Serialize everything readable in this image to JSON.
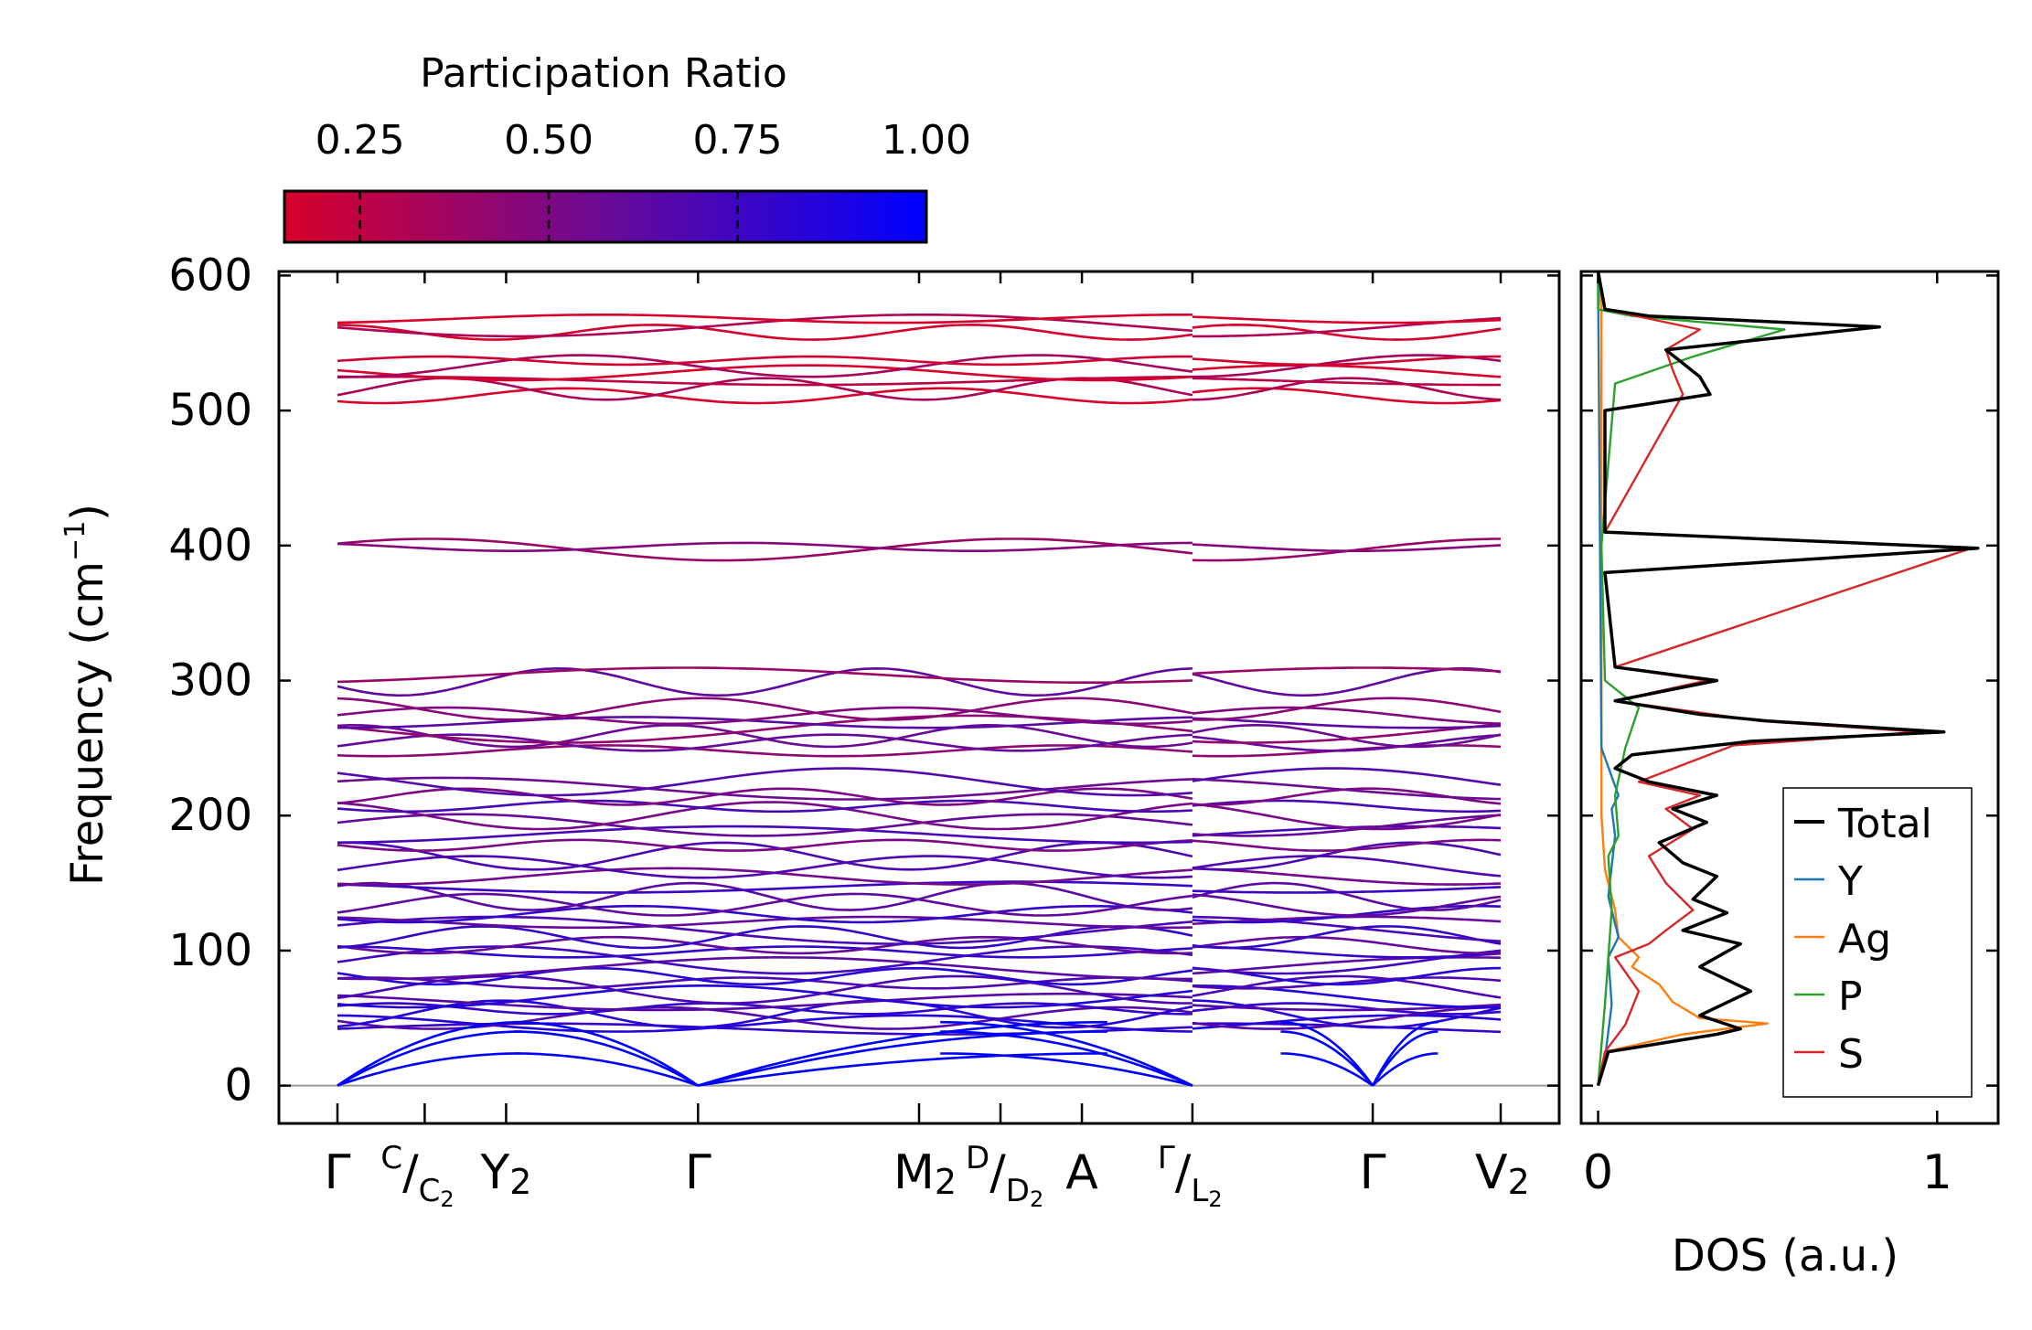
{
  "chart_data": [
    {
      "type": "line",
      "title": "",
      "xlabel": "",
      "ylabel": "Frequency (cm⁻¹)",
      "ylabel_main": "Frequency (cm",
      "ylabel_sup": "−1",
      "ylabel_close": ")",
      "ylim": [
        -28,
        603
      ],
      "yticks": [
        "0",
        "100",
        "200",
        "300",
        "400",
        "500",
        "600"
      ],
      "ytick_values": [
        0,
        100,
        200,
        300,
        400,
        500,
        600
      ],
      "path_x_range": [
        0,
        10
      ],
      "high_symmetry_points": [
        {
          "x": 0.0,
          "label": "Γ",
          "tick": true
        },
        {
          "x": 0.75,
          "label": "",
          "tick": true
        },
        {
          "x": 1.45,
          "label": "",
          "tick": true
        },
        {
          "x": 3.1,
          "label": "Γ",
          "tick": true
        },
        {
          "x": 5.0,
          "label": "",
          "tick": true
        },
        {
          "x": 5.7,
          "label": "",
          "tick": true
        },
        {
          "x": 6.4,
          "label": "A",
          "tick": true
        },
        {
          "x": 7.35,
          "label": "",
          "tick": true
        },
        {
          "x": 8.9,
          "label": "Γ",
          "tick": true
        },
        {
          "x": 10.0,
          "label": "",
          "tick": true
        }
      ],
      "composite_labels": {
        "c_c2": {
          "sup": "C",
          "slash": "/",
          "sub_main": "C",
          "sub_sub": "2"
        },
        "y2": {
          "main": "Y",
          "sub": "2"
        },
        "m2": {
          "main": "M",
          "sub": "2"
        },
        "d_d2": {
          "sup": "D",
          "slash": "/",
          "sub_main": "D",
          "sub_sub": "2"
        },
        "gamma_l2": {
          "sup": "Γ",
          "slash": "/",
          "sub_main": "L",
          "sub_sub": "2"
        },
        "v2": {
          "main": "V",
          "sub": "2"
        }
      },
      "discontinuity_x": 7.35,
      "acoustic_zero_x": [
        0,
        3.1,
        7.35,
        8.9
      ],
      "optical_bands_cm1": [
        42,
        46,
        50,
        53,
        57,
        62,
        66,
        71,
        76,
        81,
        87,
        93,
        99,
        104,
        110,
        115,
        121,
        127,
        134,
        140,
        147,
        155,
        162,
        170,
        178,
        186,
        193,
        200,
        207,
        214,
        220,
        225,
        248,
        254,
        259,
        264,
        269,
        274,
        279,
        299,
        304,
        397,
        399,
        511,
        516,
        522,
        528,
        533,
        537,
        558,
        563,
        568
      ],
      "band_participation_ratio_hint": {
        "low_freq": 0.75,
        "high_freq": 0.25
      }
    },
    {
      "type": "line",
      "title": "",
      "xlabel": "DOS (a.u.)",
      "ylabel": "",
      "xlim": [
        -0.05,
        1.18
      ],
      "ylim": [
        -28,
        603
      ],
      "xticks": [
        "0",
        "1"
      ],
      "xtick_values": [
        0,
        1
      ],
      "legend_placement": "lower-right",
      "series": [
        {
          "name": "Total",
          "color": "#000000",
          "points": [
            [
              0,
              0
            ],
            [
              0.03,
              25
            ],
            [
              0.35,
              38
            ],
            [
              0.42,
              42
            ],
            [
              0.3,
              52
            ],
            [
              0.45,
              70
            ],
            [
              0.3,
              88
            ],
            [
              0.42,
              105
            ],
            [
              0.25,
              115
            ],
            [
              0.38,
              128
            ],
            [
              0.28,
              138
            ],
            [
              0.35,
              155
            ],
            [
              0.25,
              165
            ],
            [
              0.18,
              180
            ],
            [
              0.32,
              195
            ],
            [
              0.22,
              205
            ],
            [
              0.35,
              215
            ],
            [
              0.15,
              225
            ],
            [
              0.05,
              235
            ],
            [
              0.1,
              245
            ],
            [
              0.45,
              255
            ],
            [
              1.02,
              262
            ],
            [
              0.5,
              270
            ],
            [
              0.3,
              275
            ],
            [
              0.05,
              285
            ],
            [
              0.35,
              300
            ],
            [
              0.05,
              310
            ],
            [
              0.02,
              380
            ],
            [
              1.12,
              398
            ],
            [
              0.02,
              410
            ],
            [
              0.02,
              500
            ],
            [
              0.33,
              512
            ],
            [
              0.3,
              525
            ],
            [
              0.25,
              535
            ],
            [
              0.2,
              545
            ],
            [
              0.83,
              562
            ],
            [
              0.15,
              570
            ],
            [
              0.02,
              575
            ]
          ]
        },
        {
          "name": "Y",
          "color": "#1f77b4",
          "points": [
            [
              0,
              0
            ],
            [
              0.02,
              20
            ],
            [
              0.04,
              60
            ],
            [
              0.03,
              95
            ],
            [
              0.06,
              110
            ],
            [
              0.03,
              140
            ],
            [
              0.05,
              185
            ],
            [
              0.04,
              205
            ],
            [
              0.06,
              215
            ],
            [
              0.01,
              250
            ],
            [
              0,
              600
            ]
          ]
        },
        {
          "name": "Ag",
          "color": "#ff7f0e",
          "points": [
            [
              0,
              0
            ],
            [
              0.02,
              25
            ],
            [
              0.25,
              38
            ],
            [
              0.5,
              46
            ],
            [
              0.3,
              50
            ],
            [
              0.22,
              62
            ],
            [
              0.18,
              75
            ],
            [
              0.1,
              88
            ],
            [
              0.12,
              95
            ],
            [
              0.06,
              110
            ],
            [
              0.05,
              130
            ],
            [
              0.02,
              160
            ],
            [
              0.01,
              200
            ],
            [
              0.01,
              575
            ],
            [
              0,
              600
            ]
          ]
        },
        {
          "name": "P",
          "color": "#2ca02c",
          "points": [
            [
              0,
              0
            ],
            [
              0.02,
              60
            ],
            [
              0.04,
              130
            ],
            [
              0.03,
              170
            ],
            [
              0.06,
              185
            ],
            [
              0.05,
              215
            ],
            [
              0.08,
              250
            ],
            [
              0.12,
              280
            ],
            [
              0.02,
              300
            ],
            [
              0.01,
              400
            ],
            [
              0.05,
              520
            ],
            [
              0.28,
              540
            ],
            [
              0.55,
              560
            ],
            [
              0.1,
              570
            ],
            [
              0,
              575
            ]
          ]
        },
        {
          "name": "S",
          "color": "#d62728",
          "points": [
            [
              0,
              0
            ],
            [
              0.02,
              25
            ],
            [
              0.08,
              45
            ],
            [
              0.12,
              70
            ],
            [
              0.05,
              95
            ],
            [
              0.15,
              105
            ],
            [
              0.2,
              115
            ],
            [
              0.28,
              130
            ],
            [
              0.2,
              150
            ],
            [
              0.15,
              170
            ],
            [
              0.28,
              190
            ],
            [
              0.2,
              205
            ],
            [
              0.3,
              215
            ],
            [
              0.12,
              225
            ],
            [
              0.4,
              252
            ],
            [
              0.95,
              262
            ],
            [
              0.48,
              270
            ],
            [
              0.05,
              285
            ],
            [
              0.32,
              300
            ],
            [
              0.05,
              310
            ],
            [
              1.1,
              398
            ],
            [
              0.02,
              410
            ],
            [
              0.25,
              512
            ],
            [
              0.22,
              530
            ],
            [
              0.2,
              545
            ],
            [
              0.3,
              560
            ],
            [
              0.02,
              575
            ]
          ]
        }
      ],
      "legend": [
        "Total",
        "Y",
        "Ag",
        "P",
        "S"
      ]
    }
  ],
  "colorbar": {
    "title": "Participation Ratio",
    "ticks": [
      "0.25",
      "0.50",
      "0.75",
      "1.00"
    ],
    "tick_values": [
      0.25,
      0.5,
      0.75,
      1.0
    ],
    "range": [
      0.15,
      1.0
    ],
    "colors": [
      "#d8002a",
      "#6a0a96",
      "#0000ff"
    ]
  }
}
